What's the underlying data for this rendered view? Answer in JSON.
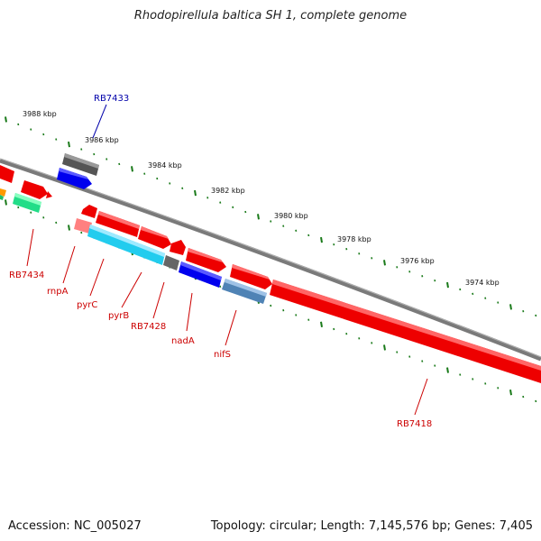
{
  "title": "Rhodopirellula baltica SH 1, complete genome",
  "footer": {
    "accession": "Accession: NC_005027",
    "topology": "Topology: circular; Length: 7,145,576 bp; Genes: 7,405"
  },
  "scale_labels": [
    "3988 kbp",
    "3986 kbp",
    "3984 kbp",
    "3982 kbp",
    "3980 kbp",
    "3978 kbp",
    "3976 kbp",
    "3974 kbp"
  ],
  "gene_labels": [
    "RB7433",
    "RB7434",
    "rnpA",
    "pyrC",
    "pyrB",
    "RB7428",
    "nadA",
    "nifS",
    "RB7418"
  ],
  "colors": {
    "backbone": "#7a7a7a",
    "tick": "#1a7a1a",
    "gene_red": "#ff0000",
    "label_red": "#cc0000",
    "label_blue": "#0000aa",
    "blue": "#0000ee",
    "cyan": "#22ccee",
    "steel": "#4f83b5",
    "gray": "#666666",
    "green": "#22dd88",
    "pink": "#ff8080"
  }
}
